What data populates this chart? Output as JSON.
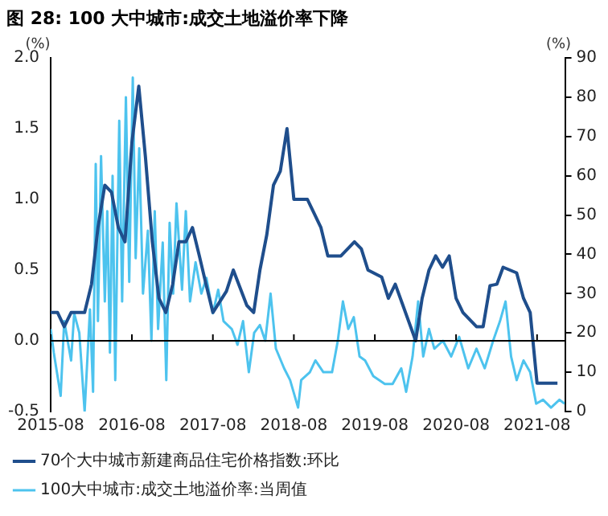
{
  "chart_data": {
    "type": "line",
    "title": "图 28: 100 大中城市:成交土地溢价率下降",
    "ylabel": "(%)",
    "y2label": "(%)",
    "xlim": [
      "2015-08-01",
      "2021-12-05"
    ],
    "xticks": [
      "2015-08",
      "2016-08",
      "2017-08",
      "2018-08",
      "2019-08",
      "2020-08",
      "2021-08"
    ],
    "ylim": [
      -0.5,
      2
    ],
    "yticks": [
      {
        "value": -0.5,
        "label": "-0.5"
      },
      {
        "value": 0,
        "label": "0.0"
      },
      {
        "value": 0.5,
        "label": "0.5"
      },
      {
        "value": 1,
        "label": "1.0"
      },
      {
        "value": 1.5,
        "label": "1.5"
      },
      {
        "value": 2,
        "label": "2.0"
      }
    ],
    "y2lim": [
      0,
      90
    ],
    "y2ticks": [
      0,
      10,
      20,
      30,
      40,
      50,
      60,
      70,
      80,
      90
    ],
    "legend": "bottom",
    "series": [
      {
        "name": "70个大中城市新建商品住宅价格指数:环比",
        "color": "#1f4e8c",
        "x": [
          "2015-08",
          "2015-09",
          "2015-10",
          "2015-11",
          "2016-01",
          "2016-02",
          "2016-03",
          "2016-04",
          "2016-05",
          "2016-06",
          "2016-07",
          "2016-08",
          "2016-09",
          "2016-10",
          "2016-11",
          "2016-12",
          "2017-01",
          "2017-02",
          "2017-03",
          "2017-04",
          "2017-05",
          "2017-06",
          "2017-07",
          "2017-08",
          "2017-10",
          "2017-11",
          "2018-01",
          "2018-02",
          "2018-03",
          "2018-04",
          "2018-05",
          "2018-06",
          "2018-07",
          "2018-08",
          "2018-10",
          "2018-12",
          "2019-01",
          "2019-03",
          "2019-05",
          "2019-06",
          "2019-07",
          "2019-09",
          "2019-10",
          "2019-11",
          "2019-12",
          "2020-02",
          "2020-03",
          "2020-04",
          "2020-05",
          "2020-06",
          "2020-07",
          "2020-08",
          "2020-09",
          "2020-11",
          "2020-12",
          "2021-01",
          "2021-02",
          "2021-03",
          "2021-05",
          "2021-06",
          "2021-07",
          "2021-08",
          "2021-11"
        ],
        "values": [
          0.2,
          0.2,
          0.1,
          0.2,
          0.2,
          0.4,
          0.8,
          1.1,
          1.05,
          0.8,
          0.7,
          1.4,
          1.8,
          1.3,
          0.7,
          0.3,
          0.2,
          0.4,
          0.7,
          0.7,
          0.8,
          0.6,
          0.4,
          0.2,
          0.35,
          0.5,
          0.25,
          0.2,
          0.5,
          0.75,
          1.1,
          1.2,
          1.5,
          1.0,
          1.0,
          0.8,
          0.6,
          0.6,
          0.7,
          0.65,
          0.5,
          0.45,
          0.3,
          0.4,
          0.27,
          0.0,
          0.3,
          0.5,
          0.6,
          0.52,
          0.6,
          0.3,
          0.2,
          0.1,
          0.1,
          0.39,
          0.4,
          0.52,
          0.48,
          0.3,
          0.2,
          -0.3,
          -0.3
        ]
      },
      {
        "name": "100大中城市:成交土地溢价率:当周值",
        "color": "#4dc3ee",
        "axis": "y2",
        "x": [
          "2015-08-01",
          "2015-08-15",
          "2015-09-15",
          "2015-10-01",
          "2015-11-01",
          "2015-11-15",
          "2015-12-08",
          "2016-01-01",
          "2016-01-25",
          "2016-02-08",
          "2016-02-20",
          "2016-03-01",
          "2016-03-15",
          "2016-04-01",
          "2016-04-12",
          "2016-04-24",
          "2016-05-06",
          "2016-05-18",
          "2016-06-05",
          "2016-06-18",
          "2016-07-05",
          "2016-07-20",
          "2016-08-05",
          "2016-08-18",
          "2016-09-03",
          "2016-09-20",
          "2016-10-12",
          "2016-10-28",
          "2016-11-12",
          "2016-11-27",
          "2016-12-18",
          "2017-01-03",
          "2017-01-18",
          "2017-02-03",
          "2017-02-18",
          "2017-03-15",
          "2017-04-01",
          "2017-04-20",
          "2017-05-15",
          "2017-06-10",
          "2017-07-03",
          "2017-08-01",
          "2017-08-25",
          "2017-09-18",
          "2017-10-25",
          "2017-11-20",
          "2017-12-15",
          "2018-01-10",
          "2018-02-03",
          "2018-03-01",
          "2018-03-25",
          "2018-04-18",
          "2018-05-12",
          "2018-06-18",
          "2018-07-15",
          "2018-08-20",
          "2018-09-03",
          "2018-10-12",
          "2018-11-06",
          "2018-12-12",
          "2019-01-20",
          "2019-02-15",
          "2019-03-10",
          "2019-04-03",
          "2019-04-28",
          "2019-05-24",
          "2019-06-18",
          "2019-07-25",
          "2019-09-15",
          "2019-10-20",
          "2019-11-28",
          "2019-12-20",
          "2020-01-18",
          "2020-02-12",
          "2020-03-06",
          "2020-04-01",
          "2020-04-25",
          "2020-06-03",
          "2020-07-10",
          "2020-08-15",
          "2020-09-25",
          "2020-11-01",
          "2020-12-08",
          "2021-01-15",
          "2021-02-15",
          "2021-03-12",
          "2021-04-06",
          "2021-05-01",
          "2021-06-01",
          "2021-07-01",
          "2021-07-28",
          "2021-08-28",
          "2021-10-03",
          "2021-11-10",
          "2021-12-03"
        ],
        "values": [
          21,
          15,
          4,
          23,
          13,
          25,
          20,
          0,
          26,
          5,
          63,
          23,
          65,
          28,
          51,
          15,
          60,
          8,
          74,
          28,
          80,
          33,
          85,
          39,
          67,
          30,
          46,
          18,
          51,
          21,
          43,
          8,
          48,
          30,
          53,
          31,
          51,
          28,
          38,
          30,
          34,
          25,
          31,
          23,
          21,
          17,
          23,
          10,
          20,
          22,
          18,
          30,
          16,
          11,
          8,
          1,
          8,
          10,
          13,
          10,
          10,
          18,
          28,
          21,
          24,
          14,
          13,
          9,
          7,
          7,
          11,
          5,
          14,
          28,
          14,
          21,
          16,
          18,
          14,
          19,
          11,
          16,
          11,
          18,
          23,
          28,
          14,
          8,
          13,
          10,
          2,
          3,
          1,
          3,
          2
        ]
      }
    ]
  }
}
